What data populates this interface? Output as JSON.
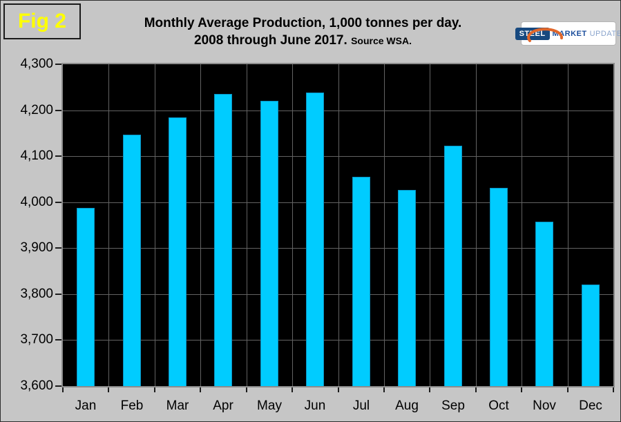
{
  "figure_label": "Fig 2",
  "title": {
    "line1": "Monthly Average Production, 1,000 tonnes per day.",
    "line2": "2008 through June 2017.",
    "source": "Source WSA."
  },
  "logo": {
    "steel": "STEEL",
    "market": "MARKET",
    "update": "UPDATE"
  },
  "colors": {
    "background": "#c6c6c6",
    "plot_background": "#000000",
    "bar_fill": "#00ccff",
    "bar_border": "#0a93c4",
    "gridline": "#636363",
    "plot_border": "#8c8c8c",
    "figure_label_color": "#ffff00",
    "logo_dark_blue": "#17497f",
    "logo_light_blue": "#8aa4cc",
    "logo_orange": "#e2672a"
  },
  "chart_data": {
    "type": "bar",
    "title": "Monthly Average Production, 1,000 tonnes per day. 2008 through June 2017. Source WSA.",
    "categories": [
      "Jan",
      "Feb",
      "Mar",
      "Apr",
      "May",
      "Jun",
      "Jul",
      "Aug",
      "Sep",
      "Oct",
      "Nov",
      "Dec"
    ],
    "values": [
      3988,
      4147,
      4185,
      4236,
      4221,
      4239,
      4055,
      4026,
      4122,
      4031,
      3957,
      3821
    ],
    "series_name": "Monthly average production (1,000 tonnes/day)",
    "xlabel": "",
    "ylabel": "",
    "ylim": [
      3600,
      4300
    ],
    "ytick_step": 100,
    "ytick_labels": [
      "3,600",
      "3,700",
      "3,800",
      "3,900",
      "4,000",
      "4,100",
      "4,200",
      "4,300"
    ],
    "grid": true,
    "legend": "none",
    "plot_style": "black background, cyan bars, gray gridlines"
  }
}
